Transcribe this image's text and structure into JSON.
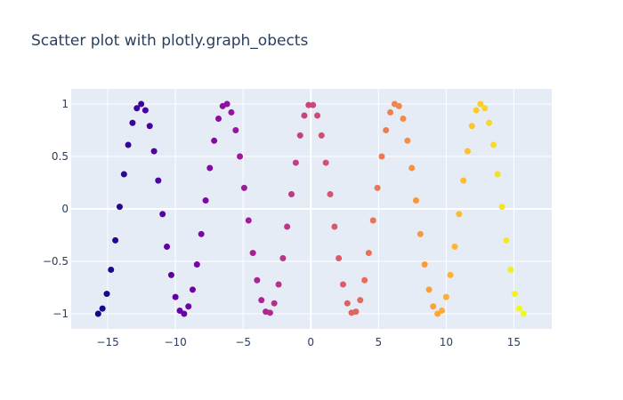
{
  "chart_data": {
    "type": "scatter",
    "title": "Scatter plot with plotly.graph_obects",
    "xlabel": "",
    "ylabel": "",
    "xlim": [
      -17.7,
      17.8
    ],
    "ylim": [
      -1.144,
      1.144
    ],
    "grid": true,
    "legend": "none",
    "x_ticks": [
      -15,
      -10,
      -5,
      0,
      5,
      10,
      15
    ],
    "x_tick_labels": [
      "−15",
      "−10",
      "−5",
      "0",
      "5",
      "10",
      "15"
    ],
    "y_ticks": [
      1,
      0.5,
      0,
      -0.5,
      -1
    ],
    "y_tick_labels": [
      "1",
      "0.5",
      "0",
      "−0.5",
      "−1"
    ],
    "marker_color": "x value, plasma colorscale",
    "colorscale": [
      "#0d0887",
      "#46039f",
      "#7201a8",
      "#9c179e",
      "#bd3786",
      "#d8576b",
      "#ed7953",
      "#fb9f3a",
      "#fdca26",
      "#f0f921"
    ],
    "colors": {
      "plot_bg": "#e5ecf6",
      "grid": "#ffffff",
      "text": "#2a3f5f"
    },
    "x": [
      -15.71,
      -15.39,
      -15.07,
      -14.76,
      -14.44,
      -14.12,
      -13.8,
      -13.49,
      -13.17,
      -12.85,
      -12.53,
      -12.22,
      -11.9,
      -11.58,
      -11.27,
      -10.95,
      -10.63,
      -10.31,
      -10,
      -9.68,
      -9.36,
      -9.04,
      -8.73,
      -8.41,
      -8.09,
      -7.77,
      -7.46,
      -7.14,
      -6.82,
      -6.51,
      -6.19,
      -5.87,
      -5.55,
      -5.24,
      -4.92,
      -4.6,
      -4.28,
      -3.97,
      -3.65,
      -3.33,
      -3.01,
      -2.7,
      -2.38,
      -2.06,
      -1.75,
      -1.43,
      -1.11,
      -0.79,
      -0.48,
      -0.16,
      0.16,
      0.48,
      0.79,
      1.11,
      1.43,
      1.75,
      2.06,
      2.38,
      2.7,
      3.01,
      3.33,
      3.65,
      3.97,
      4.28,
      4.6,
      4.92,
      5.24,
      5.55,
      5.87,
      6.19,
      6.51,
      6.82,
      7.14,
      7.46,
      7.77,
      8.09,
      8.41,
      8.73,
      9.04,
      9.36,
      9.68,
      10,
      10.31,
      10.63,
      10.95,
      11.27,
      11.58,
      11.9,
      12.22,
      12.53,
      12.85,
      13.17,
      13.49,
      13.8,
      14.12,
      14.44,
      14.76,
      15.07,
      15.39,
      15.71
    ],
    "y": [
      -1,
      -0.95,
      -0.81,
      -0.58,
      -0.3,
      0.02,
      0.33,
      0.61,
      0.82,
      0.96,
      1,
      0.94,
      0.79,
      0.55,
      0.27,
      -0.05,
      -0.36,
      -0.63,
      -0.84,
      -0.97,
      -1,
      -0.93,
      -0.77,
      -0.53,
      -0.24,
      0.08,
      0.39,
      0.65,
      0.86,
      0.98,
      1,
      0.92,
      0.75,
      0.5,
      0.2,
      -0.11,
      -0.42,
      -0.68,
      -0.87,
      -0.98,
      -0.99,
      -0.9,
      -0.72,
      -0.47,
      -0.17,
      0.14,
      0.44,
      0.7,
      0.89,
      0.99,
      0.99,
      0.89,
      0.7,
      0.44,
      0.14,
      -0.17,
      -0.47,
      -0.72,
      -0.9,
      -0.99,
      -0.98,
      -0.87,
      -0.68,
      -0.42,
      -0.11,
      0.2,
      0.5,
      0.75,
      0.92,
      1,
      0.98,
      0.86,
      0.65,
      0.39,
      0.08,
      -0.24,
      -0.53,
      -0.77,
      -0.93,
      -1,
      -0.97,
      -0.84,
      -0.63,
      -0.36,
      -0.05,
      0.27,
      0.55,
      0.79,
      0.94,
      1,
      0.96,
      0.82,
      0.61,
      0.33,
      0.02,
      -0.3,
      -0.58,
      -0.81,
      -0.95,
      -1
    ]
  }
}
